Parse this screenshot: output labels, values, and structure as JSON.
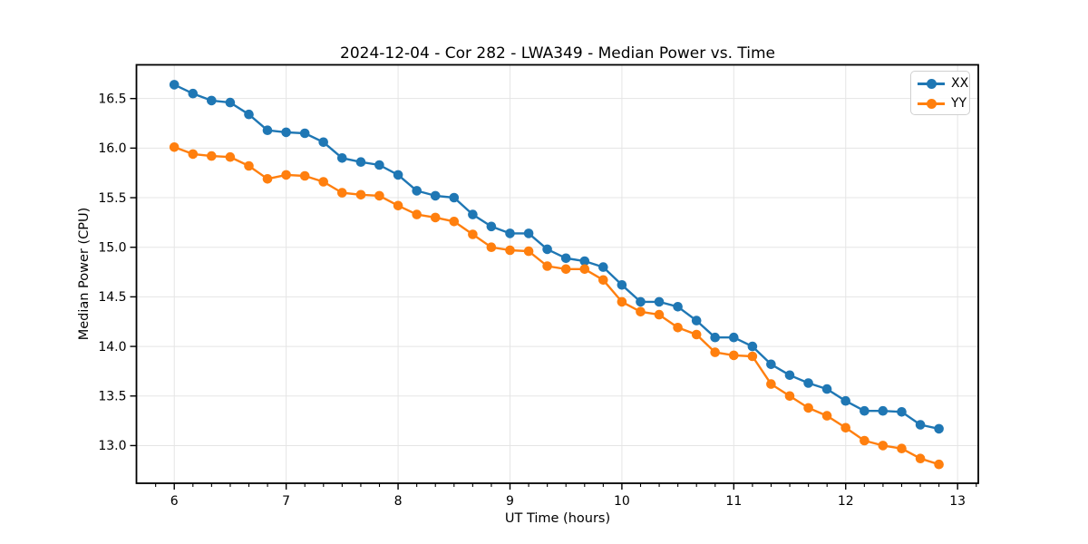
{
  "chart_data": {
    "type": "line",
    "title": "2024-12-04 - Cor 282 - LWA349 - Median Power vs. Time",
    "xlabel": "UT Time (hours)",
    "ylabel": "Median Power (CPU)",
    "xlim": [
      5.662,
      13.185
    ],
    "ylim": [
      12.62,
      16.84
    ],
    "x_ticks": [
      6,
      7,
      8,
      9,
      10,
      11,
      12,
      13
    ],
    "y_ticks": [
      13.0,
      13.5,
      14.0,
      14.5,
      15.0,
      15.5,
      16.0,
      16.5
    ],
    "x_minor_tick_step": 0.16667,
    "grid": true,
    "legend_position": "upper right",
    "x": [
      6.0,
      6.167,
      6.333,
      6.5,
      6.667,
      6.833,
      7.0,
      7.167,
      7.333,
      7.5,
      7.667,
      7.833,
      8.0,
      8.167,
      8.333,
      8.5,
      8.667,
      8.833,
      9.0,
      9.167,
      9.333,
      9.5,
      9.667,
      9.833,
      10.0,
      10.167,
      10.333,
      10.5,
      10.667,
      10.833,
      11.0,
      11.167,
      11.333,
      11.5,
      11.667,
      11.833,
      12.0,
      12.167,
      12.333,
      12.5,
      12.667,
      12.833
    ],
    "series": [
      {
        "name": "XX",
        "color": "#1f77b4",
        "values": [
          16.64,
          16.55,
          16.48,
          16.46,
          16.34,
          16.18,
          16.16,
          16.15,
          16.06,
          15.9,
          15.86,
          15.83,
          15.73,
          15.57,
          15.52,
          15.5,
          15.33,
          15.21,
          15.14,
          15.14,
          14.98,
          14.89,
          14.86,
          14.8,
          14.62,
          14.45,
          14.45,
          14.4,
          14.26,
          14.09,
          14.09,
          14.0,
          13.82,
          13.71,
          13.63,
          13.57,
          13.45,
          13.35,
          13.35,
          13.34,
          13.21,
          13.17
        ]
      },
      {
        "name": "YY",
        "color": "#ff7f0e",
        "values": [
          16.01,
          15.94,
          15.92,
          15.91,
          15.82,
          15.69,
          15.73,
          15.72,
          15.66,
          15.55,
          15.53,
          15.52,
          15.42,
          15.33,
          15.3,
          15.26,
          15.13,
          15.0,
          14.97,
          14.96,
          14.81,
          14.78,
          14.78,
          14.67,
          14.45,
          14.35,
          14.32,
          14.19,
          14.12,
          13.94,
          13.91,
          13.9,
          13.62,
          13.5,
          13.38,
          13.3,
          13.18,
          13.05,
          13.0,
          12.97,
          12.87,
          12.81
        ]
      }
    ],
    "styles": {
      "grid_color": "#e5e5e5",
      "spine_color": "#000000",
      "tick_label_color": "#000000",
      "background": "#ffffff"
    }
  }
}
